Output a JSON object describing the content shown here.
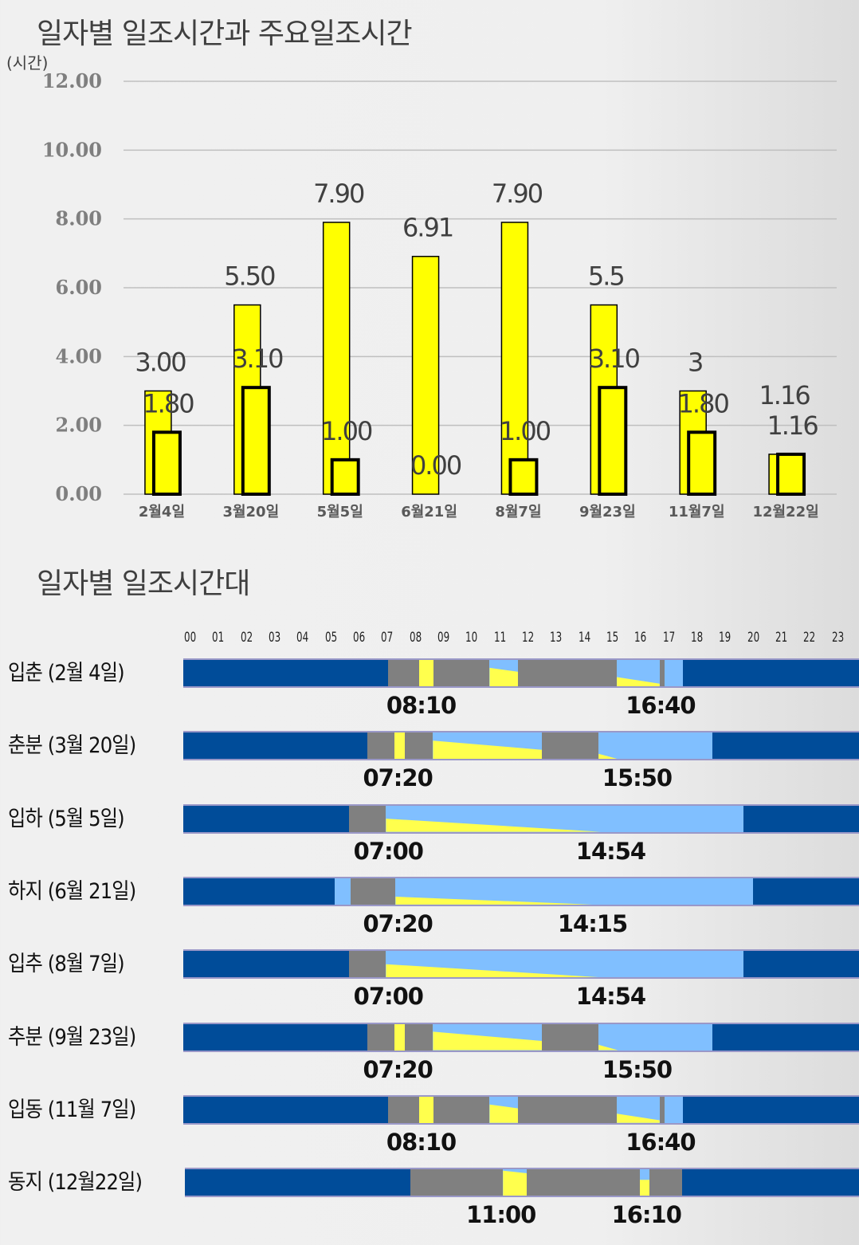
{
  "chart_data": {
    "type": "bar",
    "title": "일자별 일조시간과 주요일조시간",
    "ylabel": "(시간)",
    "ylim": [
      0,
      12
    ],
    "yticks": [
      "0.00",
      "2.00",
      "4.00",
      "6.00",
      "8.00",
      "10.00",
      "12.00"
    ],
    "grid": true,
    "categories": [
      "2월4일",
      "3월20일",
      "5월5일",
      "6월21일",
      "8월7일",
      "9월23일",
      "11월7일",
      "12월22일"
    ],
    "series": [
      {
        "name": "일조시간",
        "values": [
          3.0,
          5.5,
          7.9,
          6.91,
          7.9,
          5.5,
          3.0,
          1.16
        ],
        "labels": [
          "3.00",
          "5.50",
          "7.90",
          "6.91",
          "7.90",
          "5.5",
          "3",
          "1.16"
        ]
      },
      {
        "name": "주요일조시간",
        "values": [
          1.8,
          3.1,
          1.0,
          0.0,
          1.0,
          3.1,
          1.8,
          1.16
        ],
        "labels": [
          "1.80",
          "3.10",
          "1.00",
          "0.00",
          "1.00",
          "3.10",
          "1.80",
          "1.16"
        ]
      }
    ]
  },
  "timeline": {
    "title": "일자별 일조시간대",
    "hours": [
      "00",
      "01",
      "02",
      "03",
      "04",
      "05",
      "06",
      "07",
      "08",
      "09",
      "10",
      "11",
      "12",
      "13",
      "14",
      "15",
      "16",
      "17",
      "18",
      "19",
      "20",
      "21",
      "22",
      "23"
    ],
    "colors": {
      "night": "#004c99",
      "shade": "#808080",
      "sky": "#80bfff",
      "sun": "#ffff4d"
    },
    "rows": [
      {
        "label": "입춘 (2월 4일)",
        "times": [
          "08:10",
          "16:40"
        ],
        "segments": [
          [
            "shade",
            7.26,
            17.09
          ],
          [
            "sun",
            8.39,
            8.9
          ],
          [
            "wedge",
            10.88,
            11.9,
            0.7,
            0.55,
            1
          ],
          [
            "wedge",
            15.4,
            16.92,
            0.35,
            0.1,
            1
          ],
          [
            "sky",
            17.09,
            17.74
          ]
        ]
      },
      {
        "label": "춘분 (3월 20일)",
        "times": [
          "07:20",
          "15:50"
        ],
        "segments": [
          [
            "shade",
            6.53,
            14.75
          ],
          [
            "sun",
            7.51,
            7.88
          ],
          [
            "wedge",
            8.87,
            12.74,
            0.7,
            0.35,
            1
          ],
          [
            "wedge",
            14.75,
            18.79,
            0.2,
            0,
            0.17
          ]
        ]
      },
      {
        "label": "입하 (5월 5일)",
        "times": [
          "07:00",
          "14:54"
        ],
        "segments": [
          [
            "shade",
            5.88,
            7.2
          ],
          [
            "wedge",
            7.2,
            19.9,
            0.5,
            0,
            0.6
          ]
        ]
      },
      {
        "label": "하지 (6월 21일)",
        "times": [
          "07:20",
          "14:15"
        ],
        "segments": [
          [
            "sky",
            5.37,
            5.93
          ],
          [
            "shade",
            5.93,
            7.54
          ],
          [
            "wedge",
            7.54,
            20.25,
            0.3,
            0,
            0.55
          ]
        ]
      },
      {
        "label": "입추 (8월 7일)",
        "times": [
          "07:00",
          "14:54"
        ],
        "segments": [
          [
            "shade",
            5.88,
            7.2
          ],
          [
            "wedge",
            7.2,
            19.9,
            0.5,
            0,
            0.6
          ]
        ]
      },
      {
        "label": "추분 (9월 23일)",
        "times": [
          "07:20",
          "15:50"
        ],
        "segments": [
          [
            "shade",
            6.53,
            14.75
          ],
          [
            "sun",
            7.51,
            7.88
          ],
          [
            "wedge",
            8.87,
            12.74,
            0.7,
            0.35,
            1
          ],
          [
            "wedge",
            14.75,
            18.79,
            0.2,
            0,
            0.17
          ]
        ]
      },
      {
        "label": "입동 (11월 7일)",
        "times": [
          "08:10",
          "16:40"
        ],
        "segments": [
          [
            "shade",
            7.26,
            17.09
          ],
          [
            "sun",
            8.39,
            8.9
          ],
          [
            "wedge",
            10.88,
            11.9,
            0.7,
            0.55,
            1
          ],
          [
            "wedge",
            15.4,
            16.92,
            0.35,
            0.1,
            1
          ],
          [
            "sky",
            17.09,
            17.74
          ]
        ]
      },
      {
        "label": "동지 (12월22일)",
        "times": [
          "11:00",
          "16:10"
        ],
        "segments": [
          [
            "shade",
            8.0,
            17.66
          ],
          [
            "wedge",
            11.3,
            12.15,
            0.95,
            0.85,
            1
          ],
          [
            "wedge",
            16.16,
            16.5,
            0.6,
            0.6,
            1
          ]
        ]
      }
    ]
  }
}
